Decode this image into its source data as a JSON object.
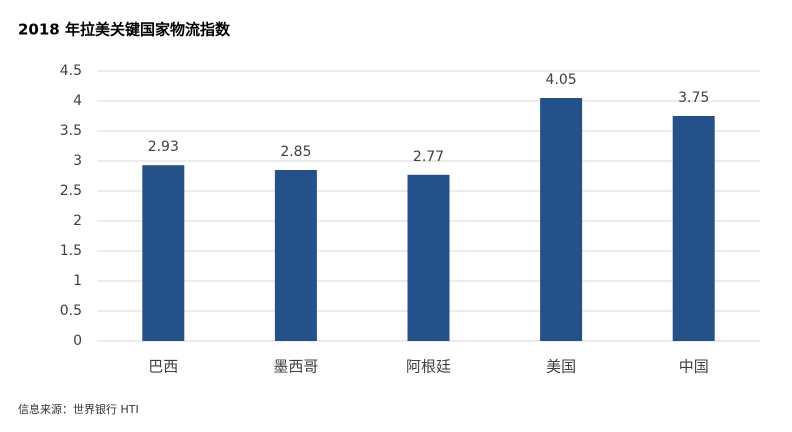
{
  "chart_data": {
    "type": "bar",
    "title": "2018 年拉美关键国家物流指数",
    "categories": [
      "巴西",
      "墨西哥",
      "阿根廷",
      "美国",
      "中国"
    ],
    "values": [
      2.93,
      2.85,
      2.77,
      4.05,
      3.75
    ],
    "color": "#245189",
    "ylim": [
      0,
      4.5
    ],
    "yticks": [
      0,
      0.5,
      1,
      1.5,
      2,
      2.5,
      3,
      3.5,
      4,
      4.5
    ],
    "grid": true,
    "source": "信息来源：世界银行 HTI"
  }
}
